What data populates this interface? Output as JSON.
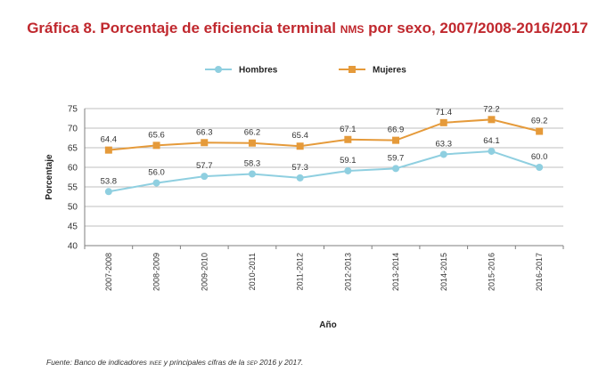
{
  "title": {
    "prefix": "Gráfica 8. Porcentaje de eficiencia terminal ",
    "abbrev": "nms",
    "suffix": " por sexo, 2007/2008-2016/2017"
  },
  "source": {
    "prefix": "Fuente: Banco de indicadores ",
    "abbrev1": "inee",
    "middle": " y principales cifras de la ",
    "abbrev2": "sep",
    "suffix": " 2016 y 2017."
  },
  "colors": {
    "hombres": "#8fcfe0",
    "mujeres": "#e59a3a",
    "title": "#c0282e",
    "grid": "#bfbfbf"
  },
  "chart_data": {
    "type": "line",
    "categories": [
      "2007-2008",
      "2008-2009",
      "2009-2010",
      "2010-2011",
      "2011-2012",
      "2012-2013",
      "2013-2014",
      "2014-2015",
      "2015-2016",
      "2016-2017"
    ],
    "series": [
      {
        "name": "Hombres",
        "marker": "circle",
        "values": [
          53.8,
          56.0,
          57.7,
          58.3,
          57.3,
          59.1,
          59.7,
          63.3,
          64.1,
          60.0
        ],
        "labels": [
          "53.8",
          "56.0",
          "57.7",
          "58.3",
          "57.3",
          "59.1",
          "59.7",
          "63.3",
          "64.1",
          "60.0"
        ]
      },
      {
        "name": "Mujeres",
        "marker": "square",
        "values": [
          64.4,
          65.6,
          66.3,
          66.2,
          65.4,
          67.1,
          66.9,
          71.4,
          72.2,
          69.2
        ],
        "labels": [
          "64.4",
          "65.6",
          "66.3",
          "66.2",
          "65.4",
          "67.1",
          "66.9",
          "71.4",
          "72.2",
          "69.2"
        ]
      }
    ],
    "xlabel": "Año",
    "ylabel": "Porcentaje",
    "ylim": [
      40,
      75
    ],
    "yticks": [
      40,
      45,
      50,
      55,
      60,
      65,
      70,
      75
    ],
    "grid": true,
    "legend_position": "top-center"
  }
}
